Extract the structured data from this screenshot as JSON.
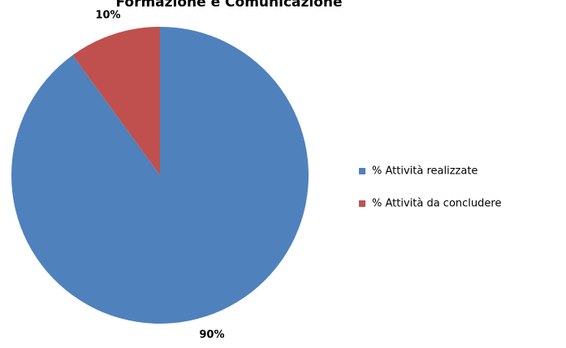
{
  "chart_data": {
    "type": "pie",
    "title": "Formazione e Comunicazione",
    "categories": [
      "% Attività realizzate",
      "% Attività da concludere"
    ],
    "values": [
      90,
      10
    ],
    "value_labels": [
      "90%",
      "10%"
    ],
    "colors": [
      "#4f81bd",
      "#c0504d"
    ],
    "legend": "right"
  }
}
